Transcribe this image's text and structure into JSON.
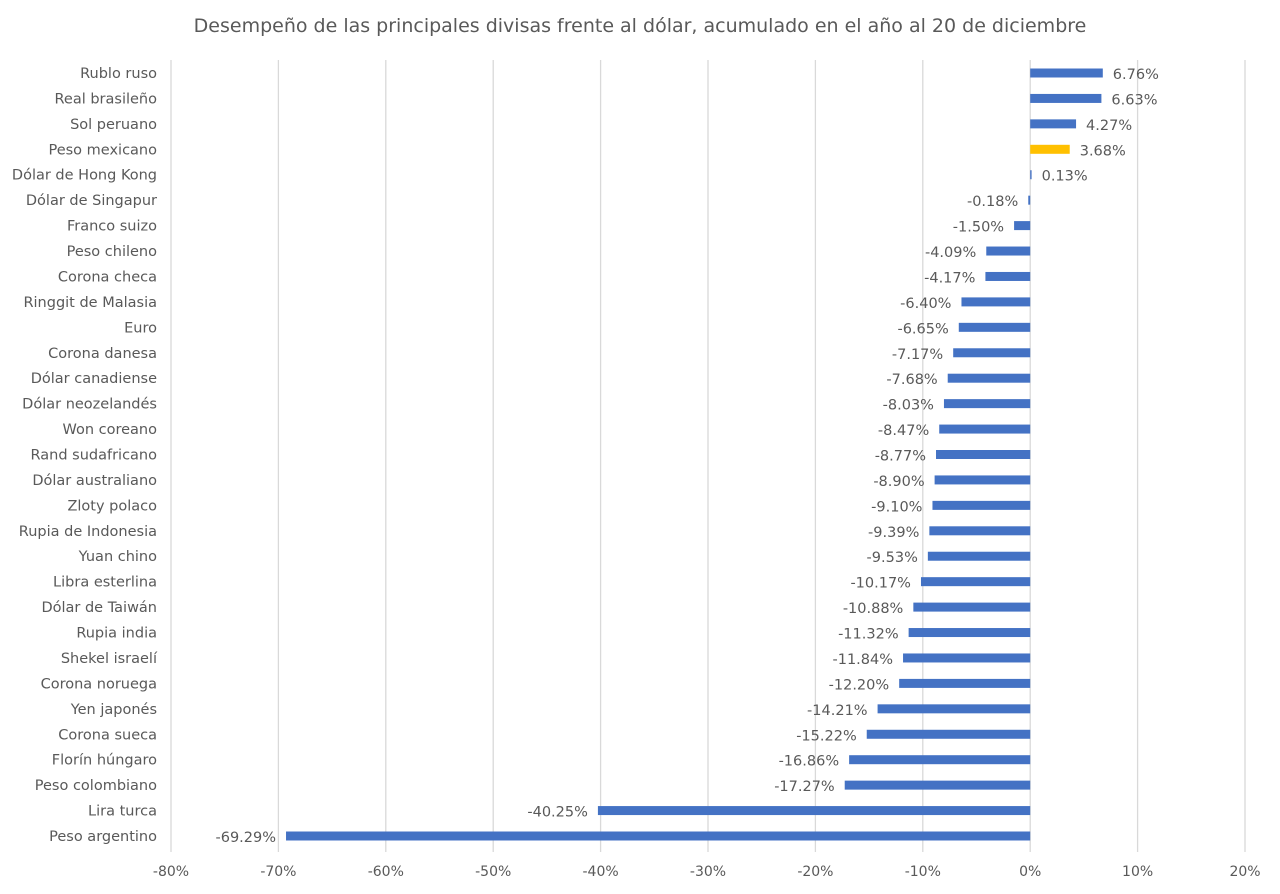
{
  "chart_data": {
    "type": "bar",
    "orientation": "horizontal",
    "title": "Desempeño de las principales divisas frente al dólar, acumulado en el año al 20 de diciembre",
    "xlabel": "",
    "ylabel": "",
    "xlim": [
      -80,
      20
    ],
    "x_ticks": [
      "-80%",
      "-70%",
      "-60%",
      "-50%",
      "-40%",
      "-30%",
      "-20%",
      "-10%",
      "0%",
      "10%",
      "20%"
    ],
    "grid": "vertical",
    "legend": "none",
    "unit": "%",
    "colors": {
      "default": "#4472C4",
      "highlight": "#FFC000"
    },
    "highlight_category": "Peso mexicano",
    "categories": [
      "Rublo ruso",
      "Real brasileño",
      "Sol peruano",
      "Peso mexicano",
      "Dólar de Hong Kong",
      "Dólar de Singapur",
      "Franco suizo",
      "Peso chileno",
      "Corona checa",
      "Ringgit de Malasia",
      "Euro",
      "Corona danesa",
      "Dólar canadiense",
      "Dólar neozelandés",
      "Won coreano",
      "Rand sudafricano",
      "Dólar australiano",
      "Zloty polaco",
      "Rupia de Indonesia",
      "Yuan chino",
      "Libra esterlina",
      "Dólar de Taiwán",
      "Rupia india",
      "Shekel israelí",
      "Corona noruega",
      "Yen japonés",
      "Corona sueca",
      "Florín húngaro",
      "Peso colombiano",
      "Lira turca",
      "Peso argentino"
    ],
    "values": [
      6.76,
      6.63,
      4.27,
      3.68,
      0.13,
      -0.18,
      -1.5,
      -4.09,
      -4.17,
      -6.4,
      -6.65,
      -7.17,
      -7.68,
      -8.03,
      -8.47,
      -8.77,
      -8.9,
      -9.1,
      -9.39,
      -9.53,
      -10.17,
      -10.88,
      -11.32,
      -11.84,
      -12.2,
      -14.21,
      -15.22,
      -16.86,
      -17.27,
      -40.25,
      -69.29
    ],
    "data_labels": [
      "6.76%",
      "6.63%",
      "4.27%",
      "3.68%",
      "0.13%",
      "-0.18%",
      "-1.50%",
      "-4.09%",
      "-4.17%",
      "-6.40%",
      "-6.65%",
      "-7.17%",
      "-7.68%",
      "-8.03%",
      "-8.47%",
      "-8.77%",
      "-8.90%",
      "-9.10%",
      "-9.39%",
      "-9.53%",
      "-10.17%",
      "-10.88%",
      "-11.32%",
      "-11.84%",
      "-12.20%",
      "-14.21%",
      "-15.22%",
      "-16.86%",
      "-17.27%",
      "-40.25%",
      "-69.29%"
    ]
  }
}
